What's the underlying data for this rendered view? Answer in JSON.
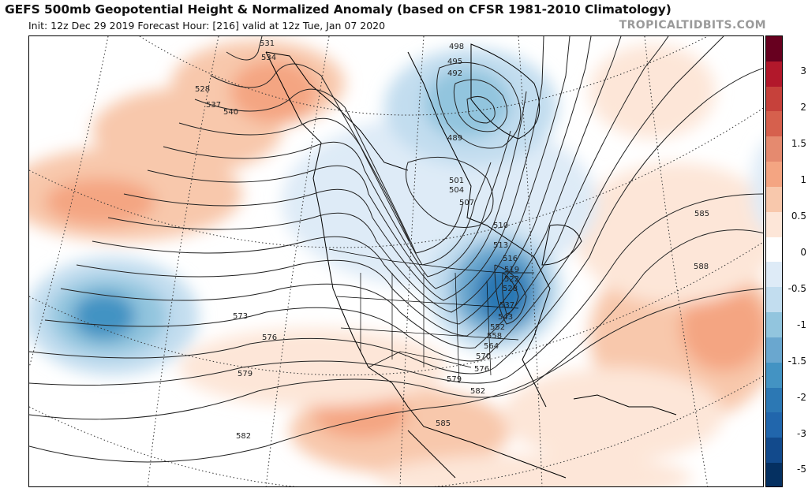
{
  "header": {
    "title": "GEFS 500mb Geopotential Height & Normalized Anomaly (based on CFSR 1981-2010 Climatology)",
    "subtitle": "Init: 12z Dec 29 2019   Forecast Hour: [216]   valid at 12z Tue, Jan 07 2020",
    "source": "TROPICALTIDBITS.COM"
  },
  "colorbar": {
    "labels": [
      "3",
      "2",
      "1.5",
      "1",
      "0.5",
      "0",
      "-0.5",
      "-1",
      "-1.5",
      "-2",
      "-3",
      "-5"
    ],
    "colors": [
      "#67001f",
      "#b2182b",
      "#c6413b",
      "#d6604d",
      "#e58a6f",
      "#f4a582",
      "#f8c8ac",
      "#fde6d8",
      "#ffffff",
      "#deebf7",
      "#c2ddef",
      "#92c5de",
      "#6aa7cf",
      "#4393c3",
      "#2c78b4",
      "#2166ac",
      "#124a8c",
      "#053061"
    ]
  },
  "contour_labels": {
    "531": "531",
    "534": "534",
    "528": "528",
    "537": "537",
    "540": "540",
    "498": "498",
    "495": "495",
    "492": "492",
    "489": "489",
    "501": "501",
    "504": "504",
    "507": "507",
    "510": "510",
    "513": "513",
    "516": "516",
    "519": "519",
    "522": "522",
    "528b": "528",
    "537b": "537",
    "543": "543",
    "552": "552",
    "558": "558",
    "564": "564",
    "570": "570",
    "576": "576",
    "579": "579",
    "582": "582",
    "585": "585",
    "588": "588",
    "573w": "573",
    "576w": "576",
    "579w": "579",
    "582w": "582",
    "585s": "585"
  }
}
